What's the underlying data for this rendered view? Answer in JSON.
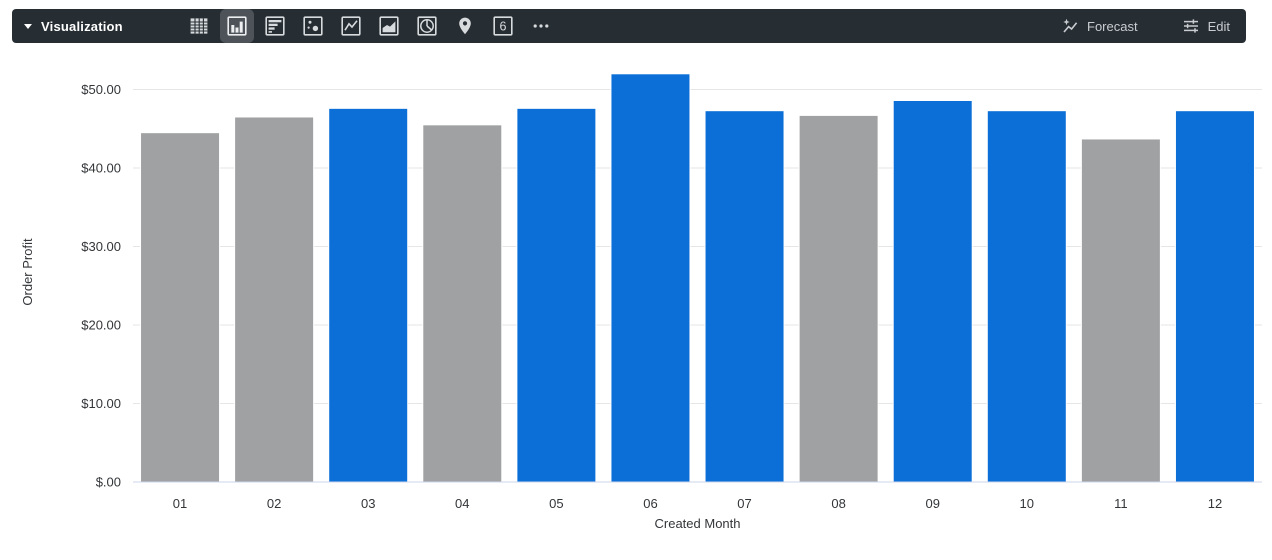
{
  "toolbar": {
    "title": "Visualization",
    "single_value_glyph": "6",
    "forecast_label": "Forecast",
    "edit_label": "Edit",
    "chart_type_icons": [
      "table",
      "column",
      "bar",
      "scatterplot",
      "line",
      "area",
      "pie",
      "map",
      "single-value",
      "more"
    ],
    "selected_chart_type": "column"
  },
  "colors": {
    "toolbar_bg": "#262d33",
    "selected_icon_bg": "#4d5359",
    "icon": "#d8dbde",
    "bar_blue": "#0b6fd7",
    "bar_gray": "#a0a1a2",
    "bar_border": "#ffffff",
    "gridline": "#e6e6e6",
    "axis_line": "#ccd6eb",
    "axis_text": "#333639"
  },
  "chart_data": {
    "type": "bar",
    "title": "",
    "xlabel": "Created Month",
    "ylabel": "Order Profit",
    "categories": [
      "01",
      "02",
      "03",
      "04",
      "05",
      "06",
      "07",
      "08",
      "09",
      "10",
      "11",
      "12"
    ],
    "values": [
      44.5,
      46.5,
      47.6,
      45.5,
      47.6,
      52.0,
      47.3,
      46.7,
      48.6,
      47.3,
      43.7,
      47.3
    ],
    "bar_colors": [
      "#a0a1a2",
      "#a0a1a2",
      "#0b6fd7",
      "#a0a1a2",
      "#0b6fd7",
      "#0b6fd7",
      "#0b6fd7",
      "#a0a1a2",
      "#0b6fd7",
      "#0b6fd7",
      "#a0a1a2",
      "#0b6fd7"
    ],
    "ylim": [
      0,
      53
    ],
    "ytick_values": [
      0,
      10,
      20,
      30,
      40,
      50
    ],
    "ytick_labels": [
      "$.00",
      "$10.00",
      "$20.00",
      "$30.00",
      "$40.00",
      "$50.00"
    ],
    "grid": true,
    "legend": "none"
  }
}
